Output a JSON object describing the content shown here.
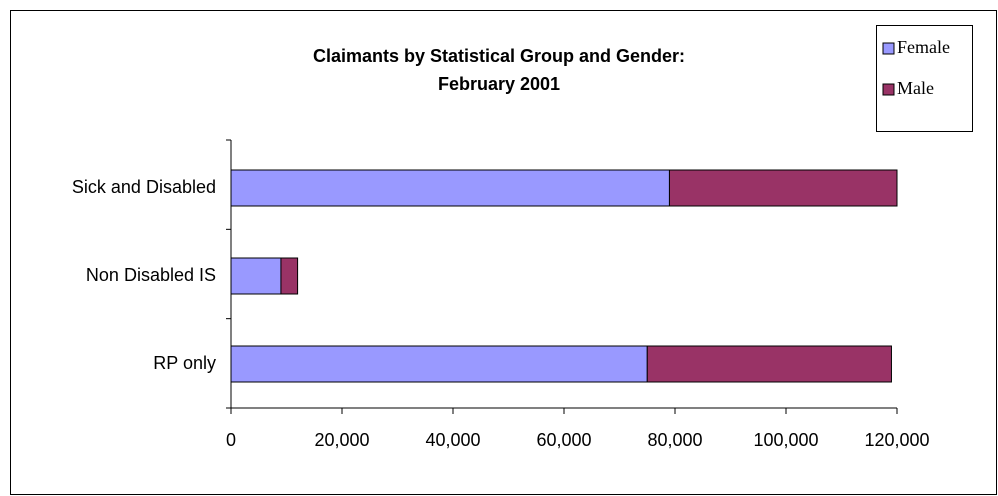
{
  "chart_data": {
    "type": "stacked_bar_horizontal",
    "title": [
      "Claimants by Statistical Group and Gender:",
      "February 2001"
    ],
    "categories": [
      "Sick and Disabled",
      "Non Disabled IS",
      "RP only"
    ],
    "series": [
      {
        "name": "Female",
        "color": "#9999ff",
        "values": [
          79000,
          9000,
          75000
        ]
      },
      {
        "name": "Male",
        "color": "#993366",
        "values": [
          41000,
          3000,
          44000
        ]
      }
    ],
    "xlim": [
      0,
      120000
    ],
    "xticks": [
      0,
      {
        "value": 20000,
        "label": "20,000"
      },
      {
        "value": 40000,
        "label": "40,000"
      },
      {
        "value": 60000,
        "label": "60,000"
      },
      {
        "value": 80000,
        "label": "80,000"
      },
      {
        "value": 100000,
        "label": "100,000"
      },
      {
        "value": 120000,
        "label": "120,000"
      }
    ],
    "legend": "top-right"
  }
}
